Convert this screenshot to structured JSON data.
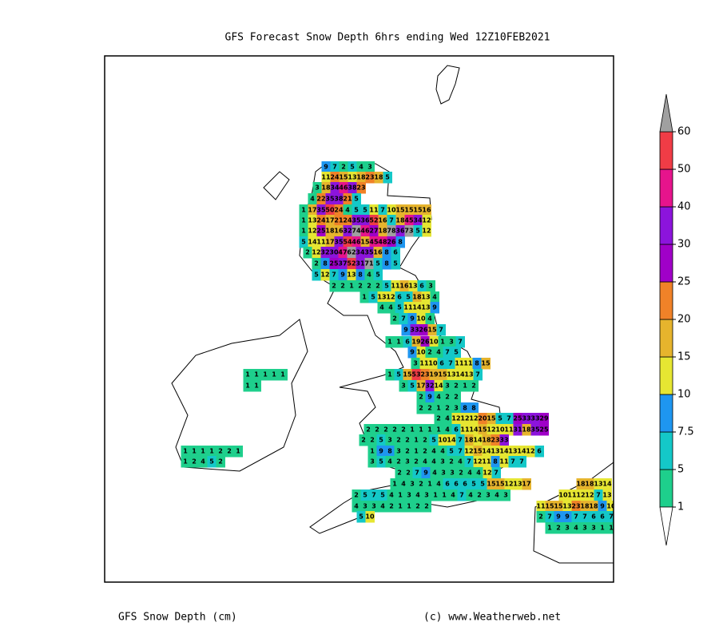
{
  "title": "GFS Forecast Snow Depth 6hrs ending Wed 12Z10FEB2021",
  "footer_left": "GFS Snow Depth (cm)",
  "footer_right": "(c) www.Weatherweb.net",
  "colorbar": {
    "levels": [
      1,
      5,
      7.5,
      10,
      15,
      20,
      25,
      30,
      40,
      50,
      60
    ],
    "colors": [
      "#1ecf8c",
      "#14c8c8",
      "#1e96f0",
      "#e6e632",
      "#e6b42d",
      "#f08228",
      "#a000c8",
      "#8c14dc",
      "#e6148c",
      "#f03c46"
    ],
    "under_color": "#ffffff",
    "over_color": "#a0a0a0"
  },
  "cells": [
    {
      "values": [
        9,
        7,
        2,
        5,
        4,
        3
      ]
    },
    {
      "values": [
        11,
        24,
        15,
        13,
        18,
        23,
        18,
        5
      ]
    },
    {
      "values": [
        3,
        18,
        34,
        46,
        38,
        23
      ]
    },
    {
      "values": [
        4,
        22,
        35,
        38,
        21,
        5
      ]
    },
    {
      "values": [
        1,
        17,
        35,
        50,
        24,
        4,
        5,
        5,
        11,
        7,
        10,
        15,
        15,
        15,
        16
      ]
    },
    {
      "values": [
        1,
        13,
        24,
        17,
        21,
        24,
        35,
        36,
        52,
        16,
        7,
        18,
        45,
        34,
        12
      ]
    },
    {
      "values": [
        1,
        12,
        25,
        18,
        16,
        32,
        74,
        46,
        27,
        18,
        78,
        36,
        73,
        5,
        12
      ]
    },
    {
      "values": [
        5,
        14,
        11,
        17,
        35,
        54,
        46,
        15,
        45,
        48,
        26,
        8
      ]
    },
    {
      "values": [
        2,
        12,
        32,
        30,
        47,
        62,
        34,
        35,
        16,
        8,
        6
      ]
    },
    {
      "values": [
        2,
        8,
        25,
        37,
        52,
        31,
        71,
        5,
        8,
        5
      ]
    },
    {
      "values": [
        5,
        12,
        7,
        9,
        13,
        8,
        4,
        5
      ]
    },
    {
      "values": [
        2,
        2,
        1,
        2,
        2,
        2,
        5,
        11,
        16,
        13,
        6,
        3
      ]
    },
    {
      "values": [
        1,
        5,
        13,
        12,
        6,
        5,
        18,
        13,
        4
      ]
    },
    {
      "values": [
        4,
        4,
        5,
        11,
        14,
        13,
        9
      ]
    },
    {
      "values": [
        2,
        7,
        9,
        10,
        4
      ]
    },
    {
      "values": [
        9,
        33,
        26,
        15,
        7
      ]
    },
    {
      "values": [
        1,
        1,
        6,
        19,
        26,
        10,
        1,
        3,
        7
      ]
    },
    {
      "values": [
        9,
        10,
        2,
        4,
        7,
        5
      ]
    },
    {
      "values": [
        3,
        11,
        10,
        6,
        7,
        11,
        11,
        8,
        15
      ]
    },
    {
      "values": [
        1,
        5,
        15,
        53,
        23,
        19,
        15,
        13,
        14,
        13,
        7
      ]
    },
    {
      "values": [
        3,
        5,
        17,
        32,
        14,
        3,
        2,
        1,
        2
      ]
    },
    {
      "values": [
        2,
        9,
        4,
        2,
        2
      ]
    },
    {
      "values": [
        2,
        2,
        1,
        2,
        3,
        8,
        8
      ]
    },
    {
      "values": [
        2,
        4,
        12,
        12,
        12,
        20,
        15,
        5,
        7,
        25,
        33,
        33,
        29
      ]
    },
    {
      "values": [
        2,
        2,
        2,
        2,
        2,
        1,
        1,
        1,
        1,
        4,
        6,
        11,
        14,
        15,
        12,
        10,
        11,
        31,
        18,
        35,
        25
      ]
    },
    {
      "values": [
        2,
        2,
        5,
        3,
        2,
        2,
        1,
        2,
        5,
        10,
        14,
        7,
        18,
        14,
        18,
        23,
        33
      ]
    },
    {
      "values": [
        1,
        9,
        8,
        3,
        2,
        1,
        2,
        4,
        4,
        5,
        7,
        12,
        15,
        14,
        13,
        14,
        13,
        14,
        12,
        6
      ]
    },
    {
      "values": [
        3,
        5,
        4,
        2,
        3,
        2,
        4,
        4,
        3,
        2,
        4,
        7,
        12,
        11,
        8,
        11,
        7,
        7
      ]
    },
    {
      "values": [
        2,
        2,
        7,
        9,
        4,
        3,
        3,
        2,
        4,
        4,
        12,
        7
      ]
    },
    {
      "values": [
        1,
        4,
        3,
        2,
        1,
        4,
        6,
        6,
        6,
        5,
        5,
        15,
        15,
        12,
        13,
        17
      ]
    },
    {
      "values": [
        2,
        5,
        7,
        5,
        4,
        1,
        3,
        4,
        3,
        1,
        1,
        4,
        7,
        4,
        2,
        3,
        4,
        3
      ]
    },
    {
      "values": [
        4,
        3,
        3,
        4,
        2,
        1,
        1,
        2,
        2
      ]
    },
    {
      "values": [
        5,
        10
      ]
    },
    {
      "values": [
        1,
        1,
        1,
        1,
        1
      ]
    },
    {
      "values": [
        1,
        1
      ]
    },
    {
      "values": [
        1,
        1,
        1,
        1,
        2,
        2,
        1
      ]
    },
    {
      "values": [
        1,
        2,
        4,
        5,
        2
      ]
    },
    {
      "values": [
        18,
        18,
        13,
        14
      ]
    },
    {
      "values": [
        10,
        11,
        12,
        12,
        7,
        13
      ]
    },
    {
      "values": [
        11,
        15,
        15,
        13,
        23,
        18,
        18,
        9,
        10
      ]
    },
    {
      "values": [
        2,
        7,
        9,
        9,
        7,
        7,
        6,
        6,
        7
      ]
    },
    {
      "values": [
        1,
        2,
        3,
        4,
        3,
        3,
        1,
        1
      ]
    }
  ]
}
